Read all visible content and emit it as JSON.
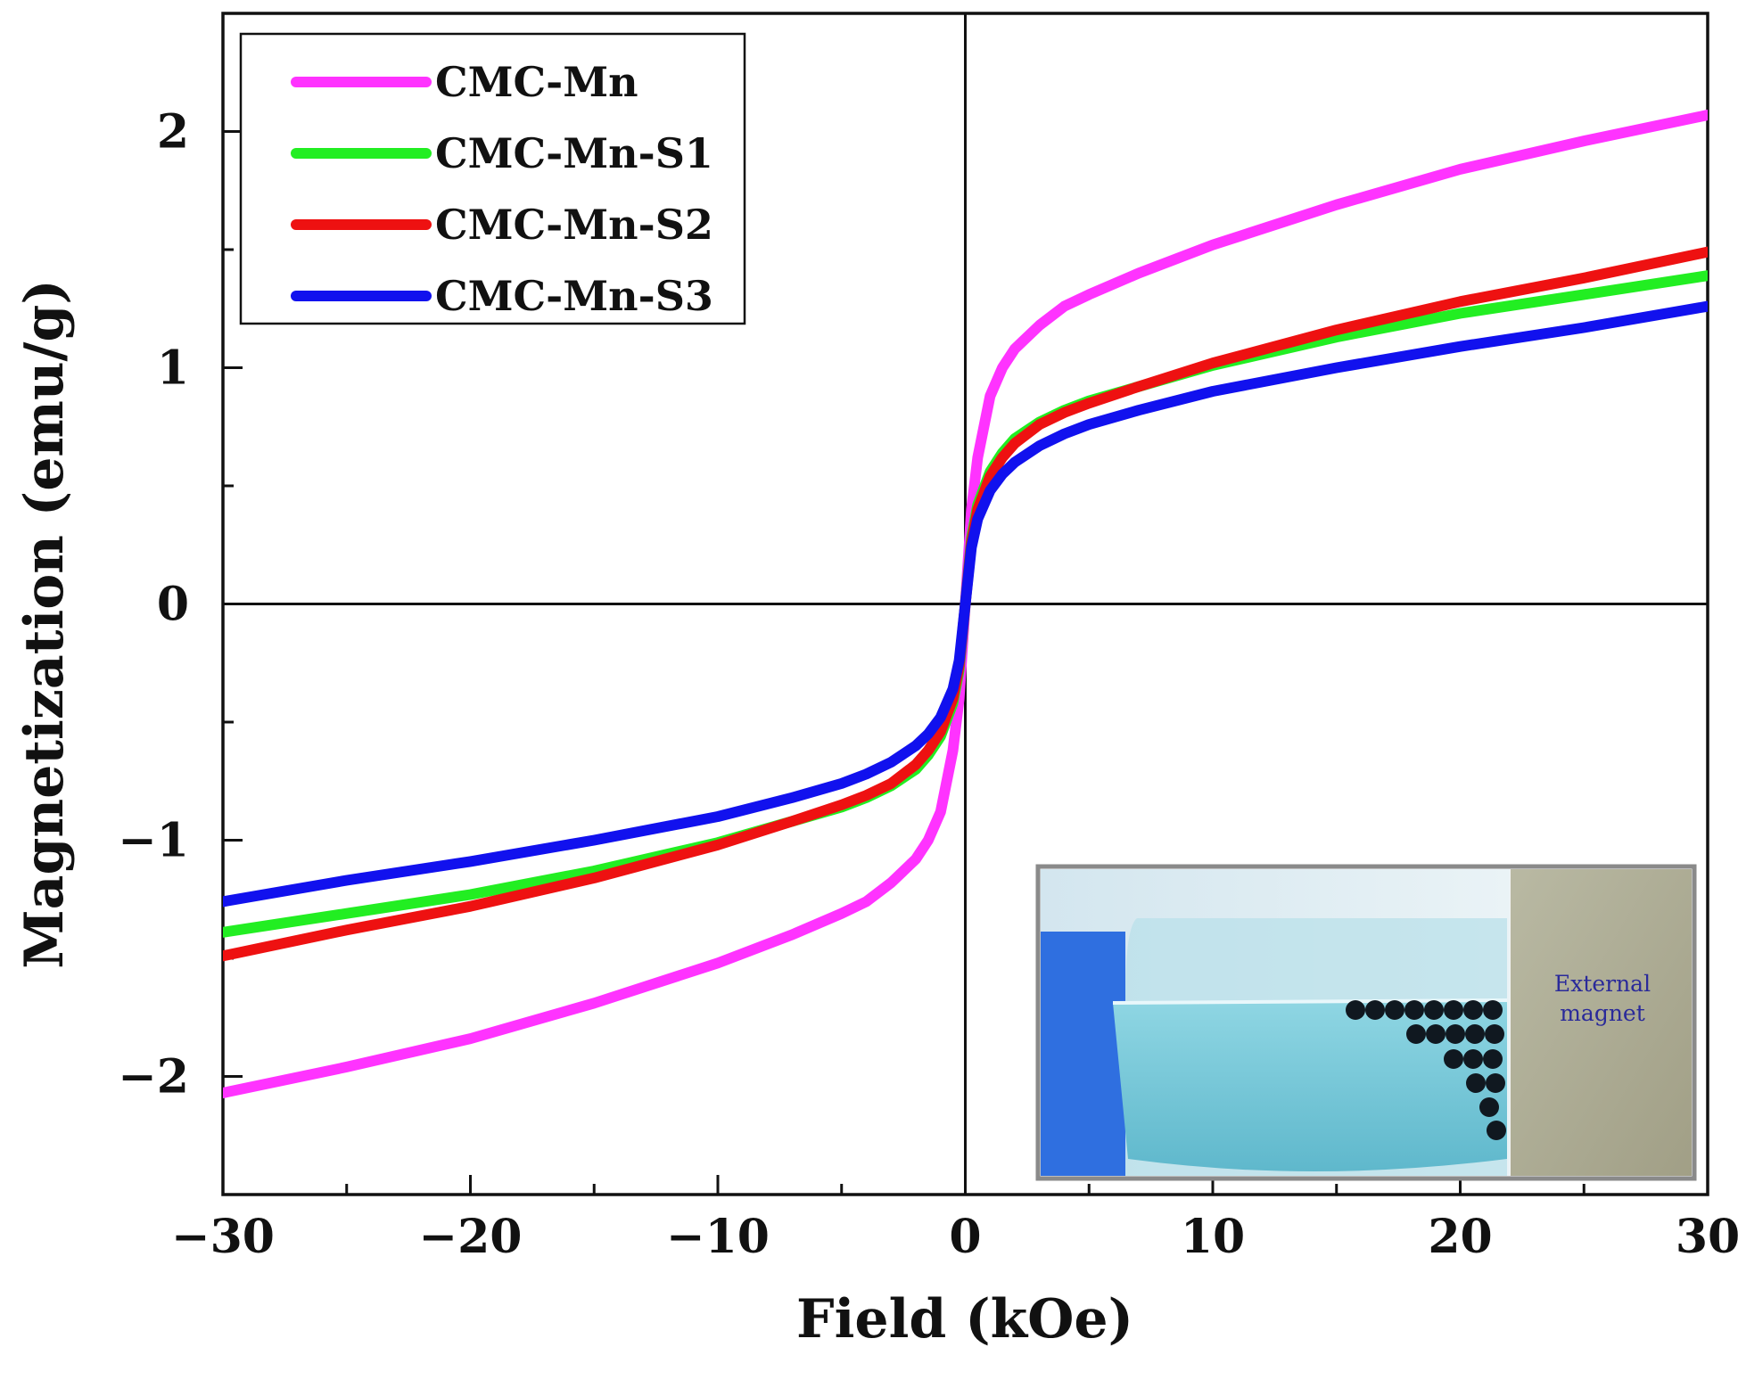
{
  "chart_data": {
    "type": "line",
    "title": "",
    "xlabel": "Field (kOe)",
    "ylabel": "Magnetization (emu/g)",
    "xlim": [
      -30,
      30
    ],
    "ylim": [
      -2.5,
      2.5
    ],
    "x_ticks": [
      -30,
      -20,
      -10,
      0,
      10,
      20,
      30
    ],
    "x_tick_labels": [
      "−30",
      "−20",
      "−10",
      "0",
      "10",
      "20",
      "30"
    ],
    "y_ticks": [
      -2,
      -1,
      0,
      1,
      2
    ],
    "y_tick_labels": [
      "−2",
      "−1",
      "0",
      "1",
      "2"
    ],
    "grid": false,
    "legend_position": "top-left",
    "x": [
      0,
      0.25,
      0.5,
      1,
      1.5,
      2,
      3,
      4,
      5,
      7,
      10,
      15,
      20,
      25,
      30
    ],
    "series": [
      {
        "name": "CMC-Mn",
        "color": "#ff33ff",
        "values": [
          0.0,
          0.4,
          0.62,
          0.88,
          1.0,
          1.08,
          1.18,
          1.26,
          1.31,
          1.4,
          1.52,
          1.69,
          1.84,
          1.96,
          2.07
        ]
      },
      {
        "name": "CMC-Mn-S1",
        "color": "#22ee22",
        "values": [
          0.0,
          0.28,
          0.42,
          0.56,
          0.64,
          0.7,
          0.77,
          0.82,
          0.86,
          0.92,
          1.01,
          1.13,
          1.23,
          1.31,
          1.39
        ]
      },
      {
        "name": "CMC-Mn-S2",
        "color": "#ee1111",
        "values": [
          0.0,
          0.26,
          0.4,
          0.54,
          0.62,
          0.68,
          0.76,
          0.81,
          0.85,
          0.92,
          1.02,
          1.16,
          1.28,
          1.38,
          1.49
        ]
      },
      {
        "name": "CMC-Mn-S3",
        "color": "#1111ee",
        "values": [
          0.0,
          0.24,
          0.36,
          0.48,
          0.55,
          0.6,
          0.67,
          0.72,
          0.76,
          0.82,
          0.9,
          1.0,
          1.09,
          1.17,
          1.26
        ]
      }
    ],
    "inset": {
      "description_label": "External magnet",
      "position": "bottom-right"
    }
  }
}
